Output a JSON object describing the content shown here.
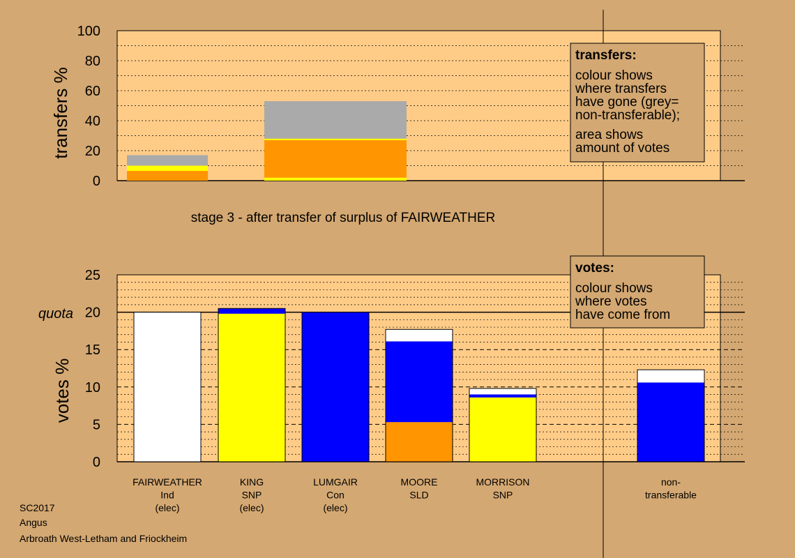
{
  "colors": {
    "background": "#d4a872",
    "plot_bg": "#ffcc88",
    "orange": "#ff9500",
    "yellow": "#ffff00",
    "blue": "#0000ff",
    "white": "#ffffff",
    "grey": "#aaaaaa",
    "navy": "#000099"
  },
  "stage_label": "stage 3 - after transfer of surplus of FAIRWEATHER",
  "transfers_box": {
    "title": "transfers:",
    "lines1": [
      "colour shows",
      "where transfers",
      "have gone (grey=",
      "non-transferable);"
    ],
    "lines2": [
      "area shows",
      "amount of votes"
    ]
  },
  "votes_box": {
    "title": "votes:",
    "lines": [
      "colour shows",
      "where votes",
      "have come from"
    ]
  },
  "quota_label": "quota",
  "footer": [
    "SC2017",
    "Angus",
    "Arbroath West-Letham and Friockheim"
  ],
  "chart_data": [
    {
      "type": "bar",
      "ylabel": "transfers %",
      "ylim": [
        0,
        100
      ],
      "yticks": [
        0,
        20,
        40,
        60,
        80,
        100
      ],
      "grid": "dotted every 10",
      "bars": [
        {
          "segments": [
            {
              "color": "orange",
              "value": 6.5
            },
            {
              "color": "yellow",
              "value": 3.5
            },
            {
              "color": "grey",
              "value": 7
            }
          ]
        },
        {
          "segments": [
            {
              "color": "yellow",
              "value": 2
            },
            {
              "color": "orange",
              "value": 25
            },
            {
              "color": "yellow",
              "value": 1
            },
            {
              "color": "grey",
              "value": 25
            }
          ]
        }
      ]
    },
    {
      "type": "bar",
      "ylabel": "votes %",
      "ylim": [
        0,
        25
      ],
      "yticks": [
        0,
        5,
        10,
        15,
        20,
        25
      ],
      "quota": 20,
      "candidates": [
        {
          "lines": [
            "FAIRWEATHER",
            "Ind",
            "(elec)"
          ],
          "segments": [
            {
              "color": "white",
              "value": 20
            }
          ]
        },
        {
          "lines": [
            "KING",
            "SNP",
            "(elec)"
          ],
          "segments": [
            {
              "color": "yellow",
              "value": 19.8
            },
            {
              "color": "blue",
              "value": 0.7
            }
          ]
        },
        {
          "lines": [
            "LUMGAIR",
            "Con",
            "(elec)"
          ],
          "segments": [
            {
              "color": "blue",
              "value": 20
            }
          ]
        },
        {
          "lines": [
            "MOORE",
            "SLD"
          ],
          "segments": [
            {
              "color": "orange",
              "value": 5.3
            },
            {
              "color": "blue",
              "value": 10.8
            },
            {
              "color": "white",
              "value": 1.6
            }
          ]
        },
        {
          "lines": [
            "MORRISON",
            "SNP"
          ],
          "segments": [
            {
              "color": "yellow",
              "value": 8.6
            },
            {
              "color": "blue",
              "value": 0.4
            },
            {
              "color": "white",
              "value": 0.8
            }
          ]
        },
        {
          "lines": [
            "non-",
            "transferable"
          ],
          "segments": [
            {
              "color": "blue",
              "value": 10.6
            },
            {
              "color": "white",
              "value": 1.7
            }
          ]
        }
      ]
    }
  ]
}
